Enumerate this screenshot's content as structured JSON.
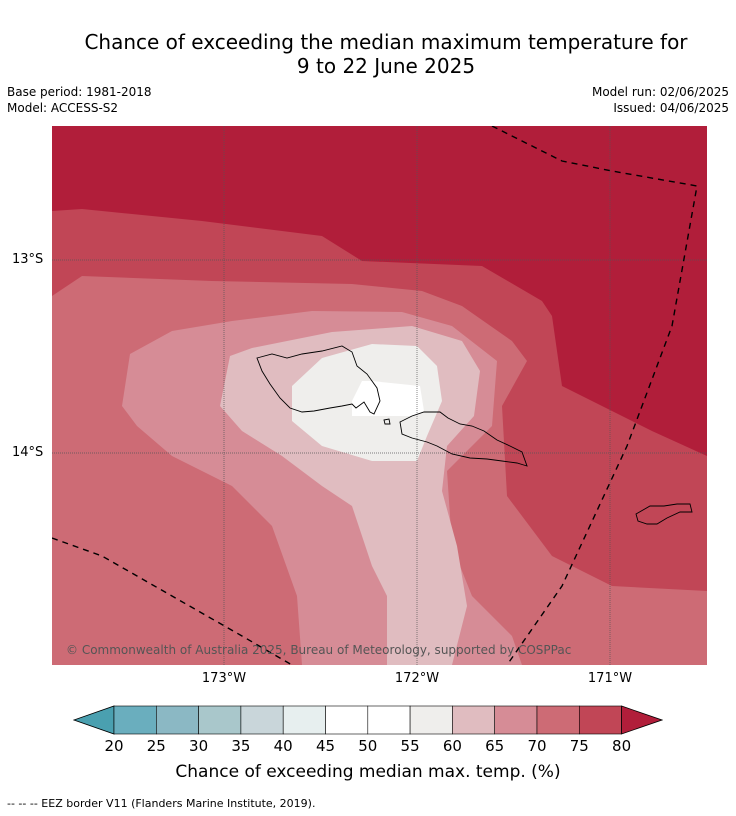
{
  "title": {
    "line1": "Chance of exceeding the median maximum temperature for",
    "line2": "9 to 22 June 2025"
  },
  "meta": {
    "base_period": "Base period: 1981-2018",
    "model": "Model: ACCESS-S2",
    "model_run": "Model run: 02/06/2025",
    "issued": "Issued: 04/06/2025"
  },
  "map": {
    "copyright": "© Commonwealth of Australia 2025, Bureau of Meteorology, supported by COSPPac",
    "lat_labels": [
      "13°S",
      "14°S"
    ],
    "lon_labels": [
      "173°W",
      "172°W",
      "171°W"
    ],
    "region": "Samoa / American Samoa"
  },
  "colorbar": {
    "ticks": [
      "20",
      "25",
      "30",
      "35",
      "40",
      "45",
      "50",
      "55",
      "60",
      "65",
      "70",
      "75",
      "80"
    ],
    "colors": {
      "under": "#4aa0b0",
      "c20_25": "#6aaebe",
      "c25_30": "#8bb8c4",
      "c30_35": "#a9c7cb",
      "c35_40": "#c9d6da",
      "c40_45": "#e7efef",
      "c45_50": "#ffffff",
      "c50_55": "#ffffff",
      "c55_60": "#efeeec",
      "c60_65": "#e0bcc0",
      "c65_70": "#d68c96",
      "c70_75": "#cd6b75",
      "c75_80": "#c14656",
      "over": "#b11e3a"
    },
    "title": "Chance of exceeding median max. temp. (%)"
  },
  "footnote": "--  --  -- EEZ border V11 (Flanders Marine Institute, 2019)."
}
